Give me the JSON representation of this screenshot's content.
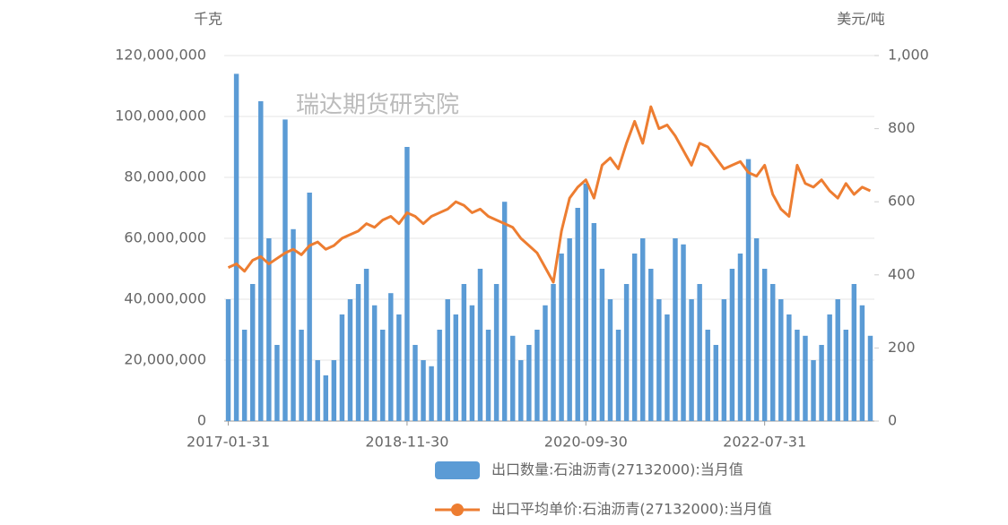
{
  "chart_data": {
    "type": "bar_line",
    "watermark": "瑞达期货研究院",
    "y_label": "千克",
    "y2_label": "美元/吨",
    "categories": [
      "2017-01-31",
      null,
      null,
      null,
      null,
      null,
      null,
      null,
      null,
      null,
      null,
      null,
      null,
      null,
      null,
      null,
      null,
      null,
      null,
      null,
      null,
      null,
      "2018-11-30",
      null,
      null,
      null,
      null,
      null,
      null,
      null,
      null,
      null,
      null,
      null,
      null,
      null,
      null,
      null,
      null,
      null,
      null,
      null,
      null,
      null,
      "2020-09-30",
      null,
      null,
      null,
      null,
      null,
      null,
      null,
      null,
      null,
      null,
      null,
      null,
      null,
      null,
      null,
      null,
      null,
      null,
      null,
      null,
      null,
      "2022-07-31",
      null,
      null,
      null,
      null,
      null,
      null,
      null,
      null,
      null,
      null,
      null,
      null,
      null
    ],
    "series": [
      {
        "name": "出口数量:石油沥青(27132000):当月值",
        "color": "#5b9bd5",
        "axis": "y",
        "values": [
          40000000,
          114000000,
          30000000,
          45000000,
          105000000,
          60000000,
          25000000,
          99000000,
          63000000,
          30000000,
          75000000,
          20000000,
          15000000,
          20000000,
          35000000,
          40000000,
          45000000,
          50000000,
          38000000,
          30000000,
          42000000,
          35000000,
          90000000,
          25000000,
          20000000,
          18000000,
          30000000,
          40000000,
          35000000,
          45000000,
          38000000,
          50000000,
          30000000,
          45000000,
          72000000,
          28000000,
          20000000,
          25000000,
          30000000,
          38000000,
          45000000,
          55000000,
          60000000,
          70000000,
          78000000,
          65000000,
          50000000,
          40000000,
          30000000,
          45000000,
          55000000,
          60000000,
          50000000,
          40000000,
          35000000,
          60000000,
          58000000,
          40000000,
          45000000,
          30000000,
          25000000,
          40000000,
          50000000,
          55000000,
          86000000,
          60000000,
          50000000,
          45000000,
          40000000,
          35000000,
          30000000,
          28000000,
          20000000,
          25000000,
          35000000,
          40000000,
          30000000,
          45000000,
          38000000,
          28000000
        ]
      },
      {
        "name": "出口平均单价:石油沥青(27132000):当月值",
        "color": "#ed7d31",
        "axis": "y2",
        "values": [
          420,
          430,
          410,
          440,
          450,
          430,
          445,
          460,
          470,
          455,
          480,
          490,
          470,
          480,
          500,
          510,
          520,
          540,
          530,
          550,
          560,
          540,
          570,
          560,
          540,
          560,
          570,
          580,
          600,
          590,
          570,
          580,
          560,
          550,
          540,
          530,
          500,
          480,
          460,
          420,
          380,
          520,
          610,
          640,
          660,
          610,
          700,
          720,
          690,
          760,
          820,
          760,
          860,
          800,
          810,
          780,
          740,
          700,
          760,
          750,
          720,
          690,
          700,
          710,
          680,
          670,
          700,
          620,
          580,
          560,
          700,
          650,
          640,
          660,
          630,
          610,
          650,
          620,
          640,
          630
        ]
      }
    ],
    "ylim": [
      0,
      120000000
    ],
    "yticks": [
      0,
      {
        "value": 20000000,
        "label": "20,000,000"
      },
      {
        "value": 40000000,
        "label": "40,000,000"
      },
      {
        "value": 60000000,
        "label": "60,000,000"
      },
      {
        "value": 80000000,
        "label": "80,000,000"
      },
      {
        "value": 100000000,
        "label": "100,000,000"
      },
      {
        "value": 120000000,
        "label": "120,000,000"
      }
    ],
    "y2lim": [
      0,
      1000
    ],
    "y2ticks": [
      0,
      200,
      400,
      600,
      800,
      {
        "value": 1000,
        "label": "1,000"
      }
    ],
    "grid": true
  }
}
